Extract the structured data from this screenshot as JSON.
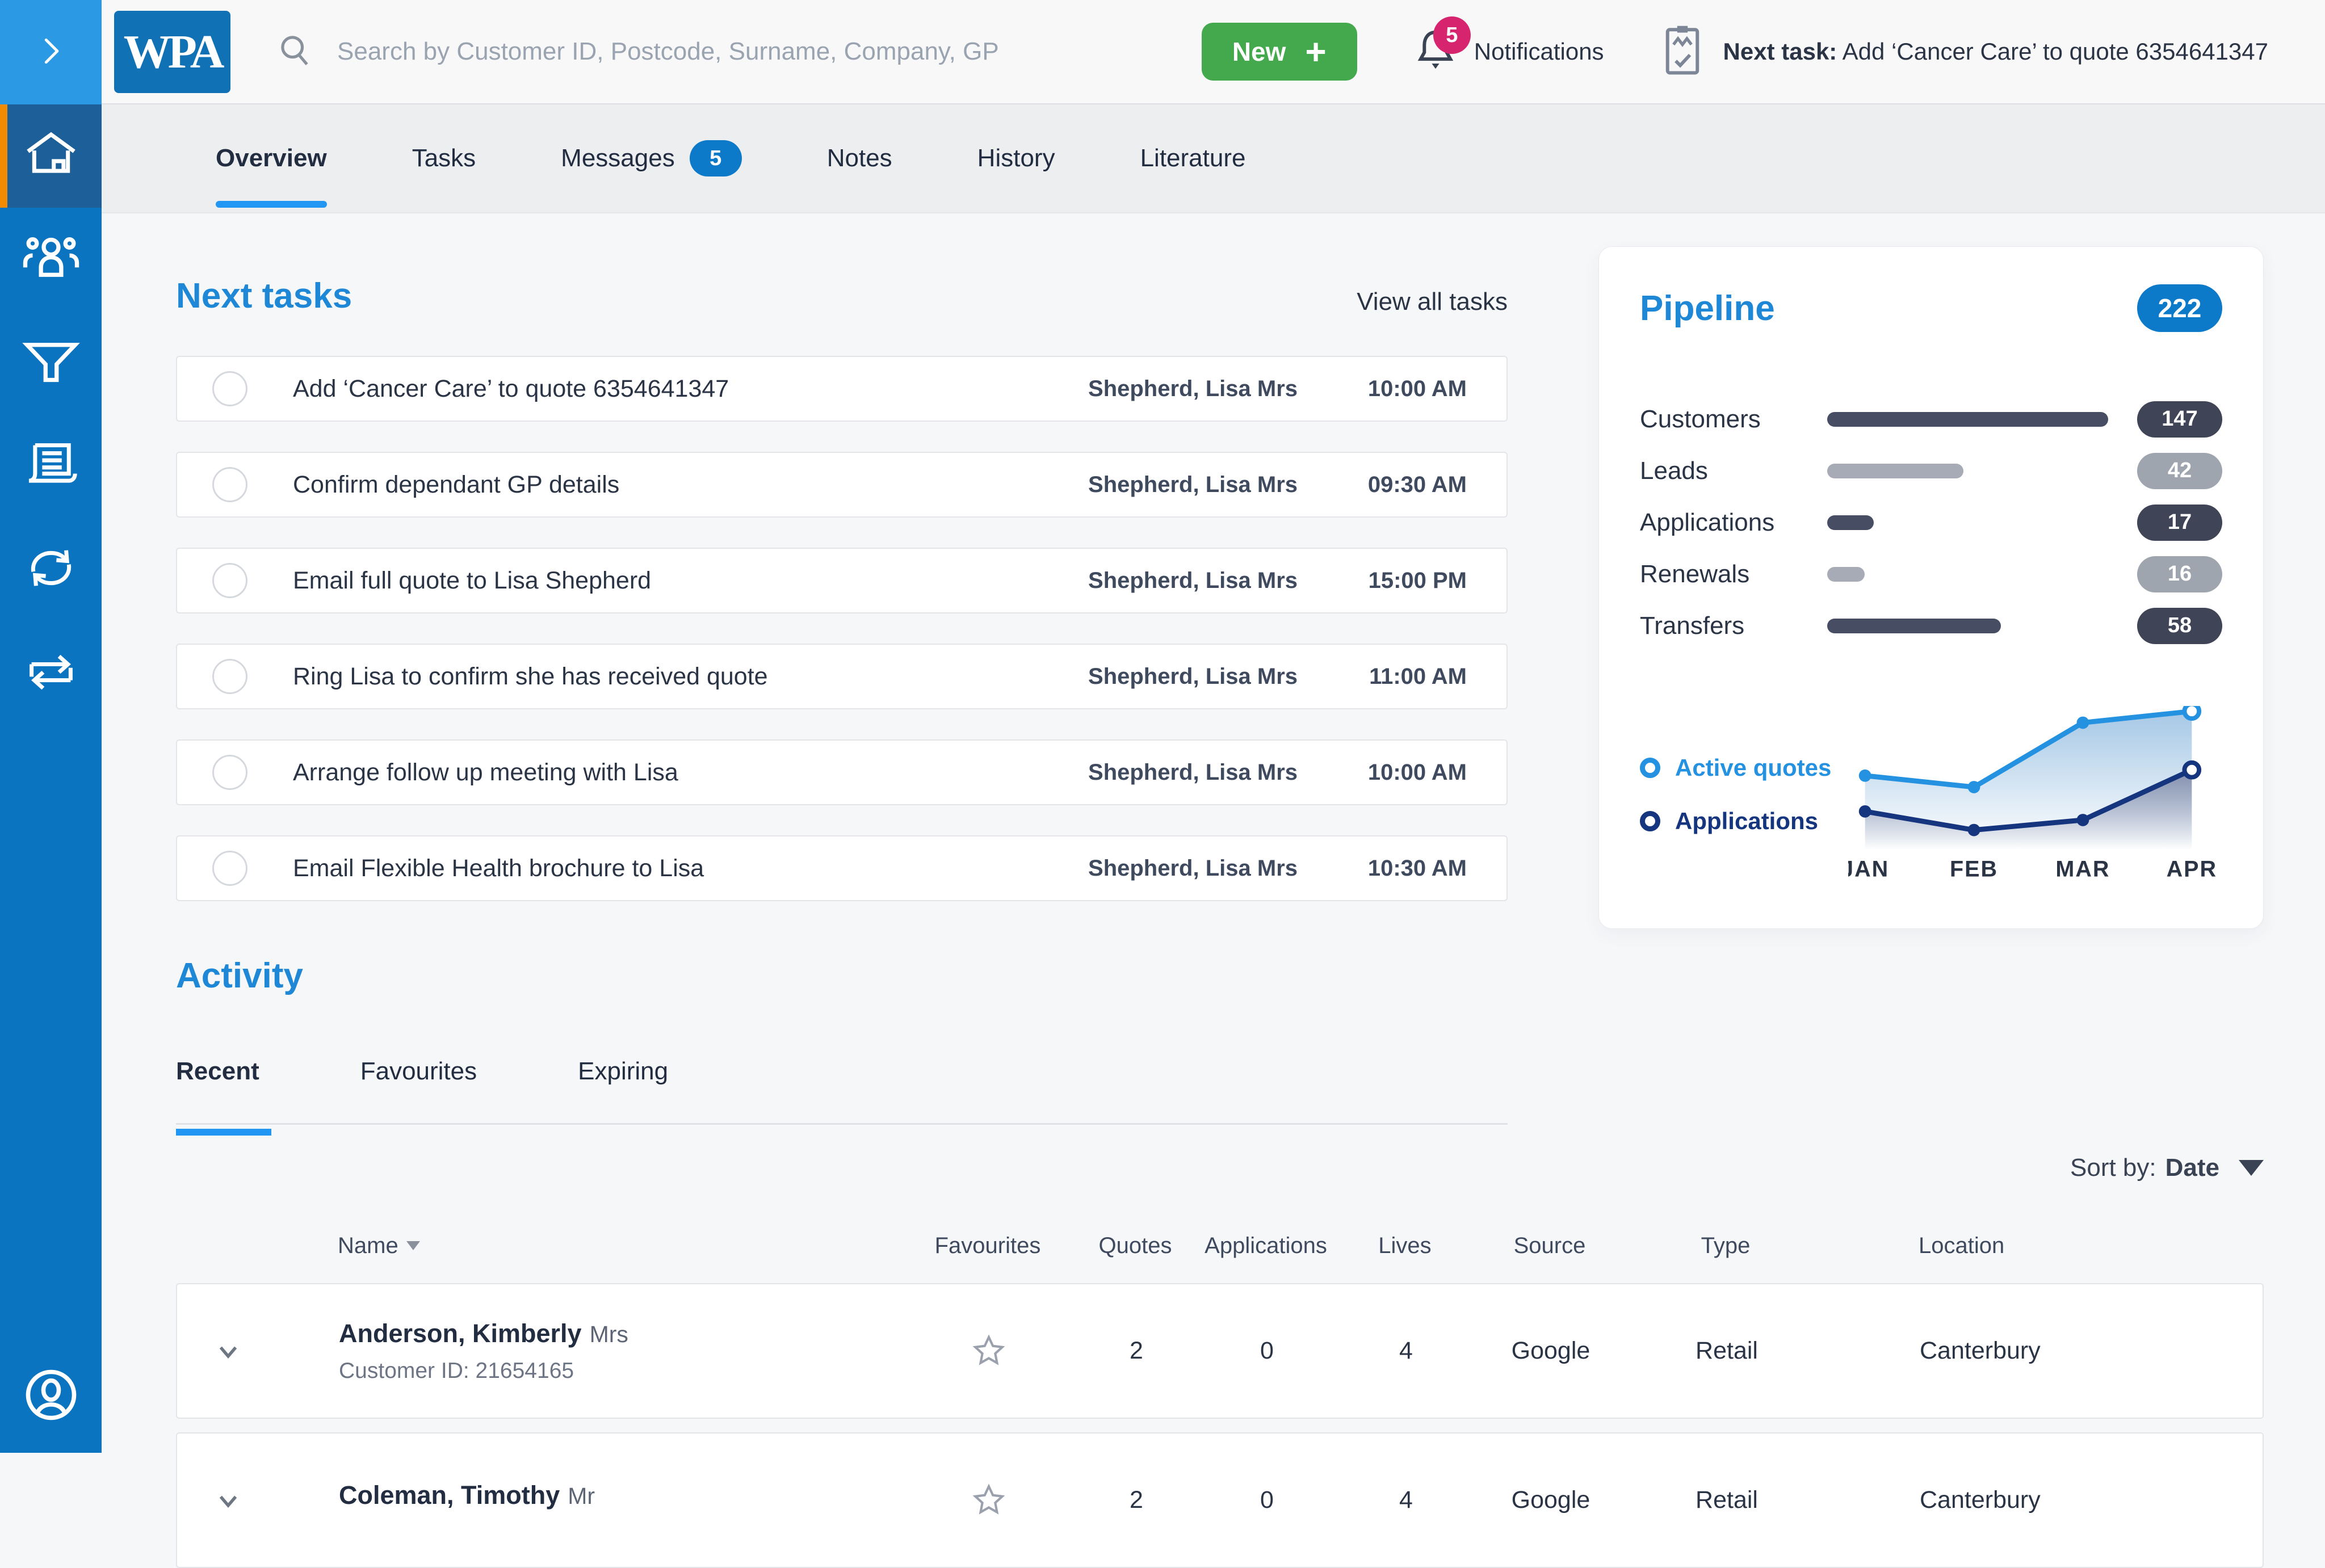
{
  "colors": {
    "sidebar_blue": "#0b74c0",
    "sidebar_active_blue": "#1d6099",
    "accent_orange": "#f28b00",
    "toggle_blue": "#2b99e4",
    "brand_blue": "#1171b5",
    "heading_blue": "#1e87d6",
    "tab_underline_blue": "#2196f3",
    "pill_blue": "#0d7ac9",
    "new_green": "#44a94c",
    "notification_pink": "#d6246e",
    "bar_dark": "#474d63",
    "bar_gray": "#a6abb5"
  },
  "topbar": {
    "logo_text": "WPA",
    "search_placeholder": "Search by Customer ID, Postcode, Surname, Company, GP",
    "new_button_label": "New",
    "notifications_label": "Notifications",
    "notifications_count": "5",
    "next_task_label": "Next task:",
    "next_task_text": "Add ‘Cancer Care’ to quote 6354641347"
  },
  "tabs": {
    "items": [
      {
        "label": "Overview",
        "active": true
      },
      {
        "label": "Tasks"
      },
      {
        "label": "Messages",
        "badge": "5"
      },
      {
        "label": "Notes"
      },
      {
        "label": "History"
      },
      {
        "label": "Literature"
      }
    ]
  },
  "next_tasks": {
    "title": "Next tasks",
    "view_all_label": "View all tasks",
    "items": [
      {
        "text": "Add ‘Cancer Care’ to quote 6354641347",
        "customer": "Shepherd, Lisa Mrs",
        "time": "10:00 AM"
      },
      {
        "text": "Confirm dependant GP details",
        "customer": "Shepherd, Lisa Mrs",
        "time": "09:30 AM"
      },
      {
        "text": "Email full quote to Lisa Shepherd",
        "customer": "Shepherd, Lisa Mrs",
        "time": "15:00 PM"
      },
      {
        "text": "Ring Lisa to confirm she has received quote",
        "customer": "Shepherd, Lisa Mrs",
        "time": "11:00 AM"
      },
      {
        "text": "Arrange follow up meeting with Lisa",
        "customer": "Shepherd, Lisa Mrs",
        "time": "10:00 AM"
      },
      {
        "text": "Email Flexible Health brochure to Lisa",
        "customer": "Shepherd, Lisa Mrs",
        "time": "10:30 AM"
      }
    ]
  },
  "pipeline": {
    "title": "Pipeline",
    "total": "222",
    "rows": [
      {
        "label": "Customers",
        "value": "147",
        "pct": 97,
        "tone": "tone-dark"
      },
      {
        "label": "Leads",
        "value": "42",
        "pct": 47,
        "tone": "tone-gray"
      },
      {
        "label": "Applications",
        "value": "17",
        "pct": 16,
        "tone": "tone-dark"
      },
      {
        "label": "Renewals",
        "value": "16",
        "pct": 13,
        "tone": "tone-gray"
      },
      {
        "label": "Transfers",
        "value": "58",
        "pct": 60,
        "tone": "tone-dark"
      }
    ],
    "chart": {
      "type": "line",
      "months": [
        "JAN",
        "FEB",
        "MAR",
        "APR"
      ],
      "series": [
        {
          "name": "Active quotes",
          "color": "#2492e0",
          "fill_from": "rgba(150,190,225,0.85)",
          "values": [
            52,
            44,
            89,
            97
          ]
        },
        {
          "name": "Applications",
          "color": "#16357f",
          "fill_from": "rgba(125,135,166,0.9)",
          "values": [
            27,
            14,
            21,
            56
          ]
        }
      ],
      "ylim": [
        0,
        100
      ],
      "legend_position": "left",
      "grid": false
    }
  },
  "activity": {
    "title": "Activity",
    "tabs": [
      {
        "label": "Recent",
        "active": true
      },
      {
        "label": "Favourites"
      },
      {
        "label": "Expiring"
      }
    ],
    "sort_label": "Sort by:",
    "sort_value": "Date",
    "table": {
      "headers": [
        "Name",
        "Favourites",
        "Quotes",
        "Applications",
        "Lives",
        "Source",
        "Type",
        "Location"
      ],
      "rows": [
        {
          "name": "Anderson, Kimberly",
          "title_suffix": "Mrs",
          "customer_id_label": "Customer ID: 21654165",
          "quotes": "2",
          "applications": "0",
          "lives": "4",
          "source": "Google",
          "type": "Retail",
          "location": "Canterbury"
        },
        {
          "name": "Coleman, Timothy",
          "title_suffix": "Mr",
          "customer_id_label": "",
          "quotes": "2",
          "applications": "0",
          "lives": "4",
          "source": "Google",
          "type": "Retail",
          "location": "Canterbury"
        }
      ]
    }
  }
}
